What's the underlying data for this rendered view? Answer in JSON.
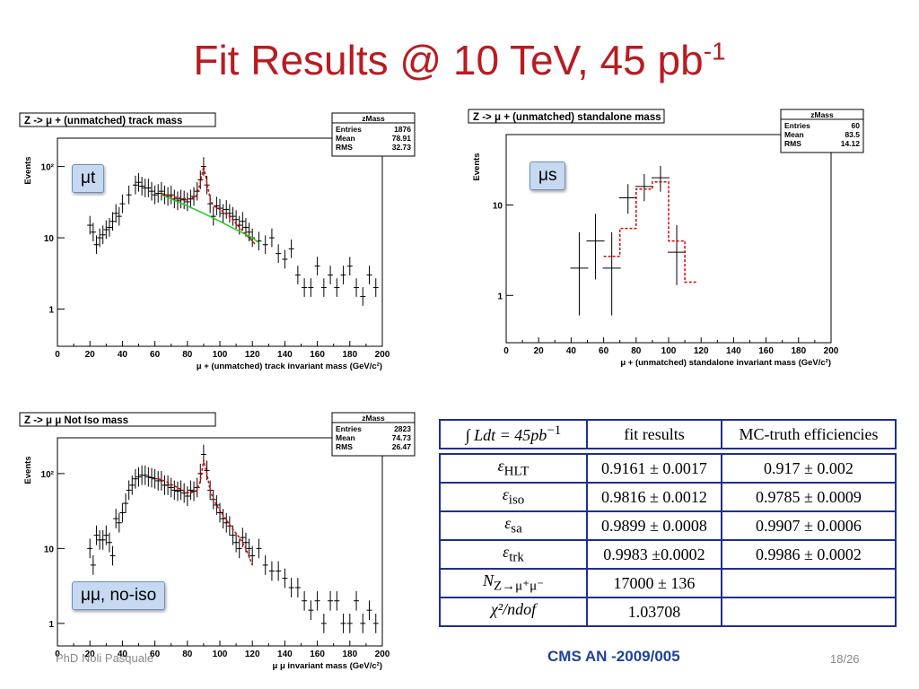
{
  "slide": {
    "title": "Fit Results @ 10 TeV, 45 pb",
    "title_sup": "-1",
    "footer_left": "PhD Noli Pasquale",
    "footer_center": "CMS AN -2009/005",
    "footer_right": "18/26"
  },
  "chart_data": [
    {
      "type": "scatter",
      "title": "Z -> μ + (unmatched) track mass",
      "xlabel": "μ + (unmatched) track invariant mass (GeV/c²)",
      "ylabel": "Events",
      "xlim": [
        0,
        200
      ],
      "yscale": "log",
      "ylim": [
        0.3,
        250
      ],
      "x_ticks": [
        "0",
        "20",
        "40",
        "60",
        "80",
        "100",
        "120",
        "140",
        "160",
        "180",
        "200"
      ],
      "y_ticks": [
        "1",
        "10",
        "10²"
      ],
      "stats": {
        "name": "zMass",
        "rows": [
          [
            "Entries",
            "1876"
          ],
          [
            "Mean",
            "78.91"
          ],
          [
            "RMS",
            "32.73"
          ]
        ]
      },
      "label": "μt",
      "series": [
        {
          "style": "data",
          "x": [
            20,
            22,
            24,
            26,
            28,
            30,
            32,
            34,
            36,
            38,
            40,
            44,
            48,
            50,
            52,
            54,
            56,
            58,
            60,
            62,
            64,
            66,
            68,
            70,
            72,
            74,
            76,
            78,
            80,
            82,
            84,
            86,
            88,
            90,
            92,
            94,
            96,
            98,
            100,
            102,
            104,
            106,
            108,
            110,
            112,
            114,
            116,
            118,
            120,
            124,
            128,
            132,
            136,
            140,
            144,
            148,
            152,
            156,
            160,
            164,
            168,
            172,
            176,
            180,
            184,
            188,
            192,
            196
          ],
          "y": [
            15,
            12,
            8,
            10,
            11,
            13,
            14,
            17,
            22,
            20,
            30,
            40,
            55,
            60,
            53,
            50,
            50,
            45,
            40,
            42,
            45,
            40,
            38,
            40,
            35,
            33,
            35,
            34,
            32,
            35,
            38,
            45,
            65,
            100,
            55,
            30,
            20,
            28,
            26,
            22,
            25,
            22,
            20,
            18,
            15,
            17,
            14,
            12,
            10,
            9,
            8,
            10,
            6,
            5,
            7,
            3,
            2,
            2,
            4,
            2,
            3,
            2,
            3,
            4,
            2,
            1.5,
            3,
            2
          ]
        },
        {
          "style": "fit",
          "x": [
            64,
            70,
            76,
            82,
            86,
            88,
            90,
            92,
            94,
            96,
            100,
            106,
            112,
            118,
            122
          ],
          "y": [
            42,
            38,
            36,
            35,
            40,
            60,
            100,
            60,
            35,
            28,
            25,
            20,
            14,
            10,
            8
          ]
        },
        {
          "style": "background",
          "x": [
            64,
            70,
            80,
            90,
            100,
            110,
            120,
            124
          ],
          "y": [
            40,
            35,
            28,
            22,
            17,
            13,
            10,
            8.5
          ]
        }
      ]
    },
    {
      "type": "scatter",
      "title": "Z -> μ + (unmatched) standalone mass",
      "xlabel": "μ + (unmatched) standalone invariant mass (GeV/c²)",
      "ylabel": "Events",
      "xlim": [
        0,
        200
      ],
      "yscale": "log",
      "ylim": [
        0.3,
        60
      ],
      "x_ticks": [
        "0",
        "20",
        "40",
        "60",
        "80",
        "100",
        "120",
        "140",
        "160",
        "180",
        "200"
      ],
      "y_ticks": [
        "1",
        "10"
      ],
      "stats": {
        "name": "zMass",
        "rows": [
          [
            "Entries",
            "60"
          ],
          [
            "Mean",
            "83.5"
          ],
          [
            "RMS",
            "14.12"
          ]
        ]
      },
      "label": "μs",
      "series": [
        {
          "style": "data",
          "x": [
            45,
            55,
            65,
            75,
            85,
            95,
            105
          ],
          "y": [
            2,
            4,
            2,
            12,
            16,
            20,
            3
          ],
          "err_lo": [
            0.6,
            1.5,
            0.6,
            8,
            11,
            14,
            1.3
          ],
          "err_hi": [
            5,
            8,
            5,
            17,
            22,
            27,
            6
          ]
        },
        {
          "style": "fit",
          "step": true,
          "x": [
            60,
            65,
            70,
            75,
            80,
            90,
            100,
            105,
            110,
            118
          ],
          "y": [
            2.7,
            2.7,
            5.5,
            5.5,
            15,
            18,
            4,
            4,
            1.4,
            1.4
          ]
        }
      ]
    },
    {
      "type": "scatter",
      "title": "Z -> μ μ Not Iso mass",
      "xlabel": "μ μ invariant mass (GeV/c²)",
      "ylabel": "Events",
      "xlim": [
        0,
        200
      ],
      "yscale": "log",
      "ylim": [
        0.5,
        300
      ],
      "x_ticks": [
        "0",
        "20",
        "40",
        "60",
        "80",
        "100",
        "120",
        "140",
        "160",
        "180",
        "200"
      ],
      "y_ticks": [
        "1",
        "10",
        "10²"
      ],
      "stats": {
        "name": "zMass",
        "rows": [
          [
            "Entries",
            "2823"
          ],
          [
            "Mean",
            "74.73"
          ],
          [
            "RMS",
            "26.47"
          ]
        ]
      },
      "label": "μμ, no-iso",
      "series": [
        {
          "style": "data",
          "x": [
            20,
            22,
            24,
            26,
            28,
            30,
            32,
            34,
            36,
            38,
            40,
            42,
            44,
            46,
            48,
            50,
            52,
            54,
            56,
            58,
            60,
            62,
            64,
            66,
            68,
            70,
            72,
            74,
            76,
            78,
            80,
            82,
            84,
            86,
            88,
            90,
            92,
            94,
            96,
            98,
            100,
            102,
            104,
            106,
            108,
            110,
            112,
            114,
            116,
            118,
            120,
            124,
            128,
            132,
            136,
            140,
            144,
            148,
            152,
            156,
            160,
            164,
            168,
            172,
            176,
            180,
            184,
            188,
            192,
            196
          ],
          "y": [
            10,
            6,
            15,
            13,
            13,
            15,
            12,
            8,
            25,
            22,
            30,
            40,
            60,
            70,
            85,
            90,
            95,
            95,
            90,
            88,
            85,
            80,
            80,
            70,
            70,
            65,
            60,
            58,
            60,
            55,
            50,
            60,
            58,
            65,
            100,
            180,
            110,
            60,
            45,
            38,
            30,
            25,
            22,
            20,
            15,
            12,
            10,
            14,
            12,
            10,
            8,
            10,
            6,
            5,
            5,
            4,
            3,
            3,
            2,
            1.5,
            2,
            1,
            2,
            2,
            1,
            1,
            2,
            1,
            1.5,
            1
          ]
        },
        {
          "style": "fit",
          "x": [
            62,
            66,
            70,
            74,
            78,
            82,
            86,
            88,
            90,
            92,
            94,
            96,
            100,
            104,
            108,
            112,
            116,
            120
          ],
          "y": [
            85,
            80,
            72,
            65,
            58,
            55,
            60,
            80,
            150,
            100,
            60,
            45,
            32,
            24,
            18,
            14,
            10,
            6
          ]
        }
      ]
    }
  ],
  "results_table": {
    "headers": [
      "∫ Ldt = 45pb",
      "fit results",
      "MC-truth efficiencies"
    ],
    "header_sup": "−1",
    "rows": [
      {
        "param": "ε",
        "sub": "HLT",
        "fit": "0.9161 ± 0.0017",
        "mc": "0.917 ± 0.002"
      },
      {
        "param": "ε",
        "sub": "iso",
        "fit": "0.9816 ± 0.0012",
        "mc": "0.9785 ± 0.0009"
      },
      {
        "param": "ε",
        "sub": "sa",
        "fit": "0.9899 ± 0.0008",
        "mc": "0.9907 ± 0.0006"
      },
      {
        "param": "ε",
        "sub": "trk",
        "fit": "0.9983 ±0.0002",
        "mc": "0.9986 ± 0.0002"
      },
      {
        "param": "N",
        "sub": "Z→μ⁺μ⁻",
        "fit": "17000 ± 136",
        "mc": ""
      },
      {
        "param": "χ²/ndof",
        "sub": "",
        "fit": "1.03708",
        "mc": ""
      }
    ]
  },
  "colors": {
    "title": "#b81c22",
    "fit": "#dd0000",
    "background": "#22cc22",
    "table_border": "#1f2f8f",
    "tag_bg": "#c6d9f1"
  }
}
